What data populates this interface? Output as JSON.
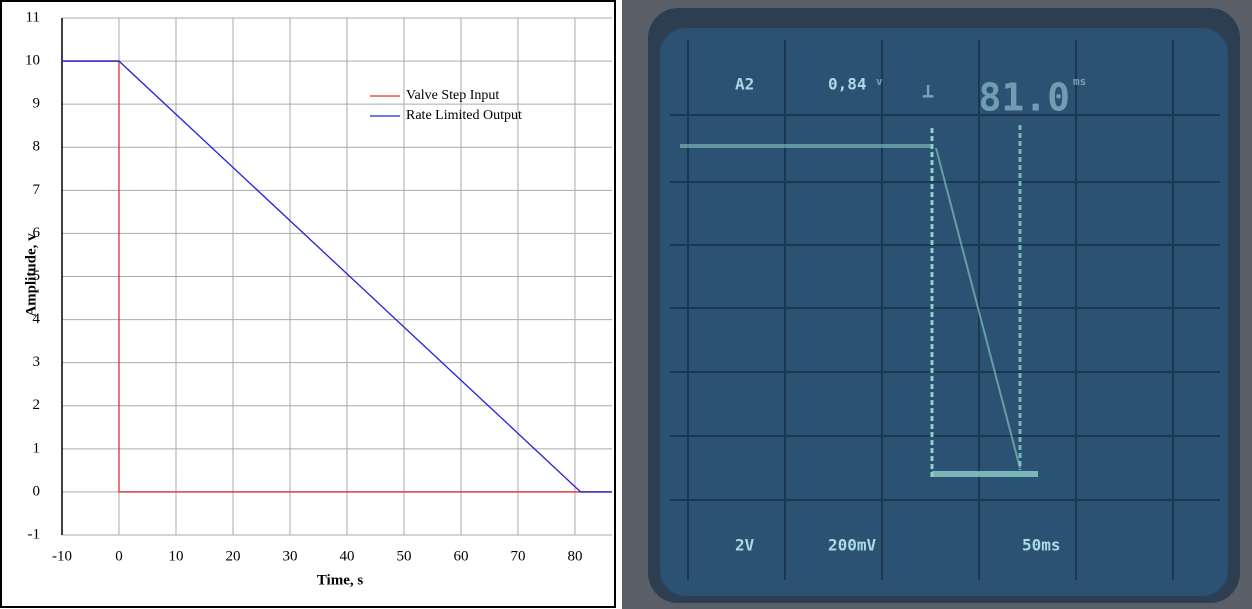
{
  "chart_data": {
    "type": "line",
    "x_label": "Time, s",
    "y_label": "Amplitude, v",
    "x": [
      -10,
      0,
      0,
      81,
      86.5
    ],
    "series": [
      {
        "name": "Valve Step Input",
        "color": "#e03030",
        "values": [
          10,
          10,
          0,
          0,
          0
        ]
      },
      {
        "name": "Rate Limited Output",
        "color": "#2020e0",
        "values": [
          10,
          10,
          10,
          0,
          0
        ]
      }
    ],
    "xlim": [
      -10,
      86.5
    ],
    "xticks": [
      -10,
      0,
      10,
      20,
      30,
      40,
      50,
      60,
      70,
      80
    ],
    "ylim": [
      -1,
      11
    ],
    "yticks": [
      -1,
      0,
      1,
      2,
      3,
      4,
      5,
      6,
      7,
      8,
      9,
      10,
      11
    ],
    "grid": true,
    "legend": "upper right"
  },
  "scope": {
    "channel": "A2",
    "voltage": "0,84",
    "voltage_unit": "v",
    "time": "81.0",
    "time_unit": "ms",
    "channel_scale": "2V",
    "volt_scale": "200mV",
    "time_scale": "50ms"
  }
}
